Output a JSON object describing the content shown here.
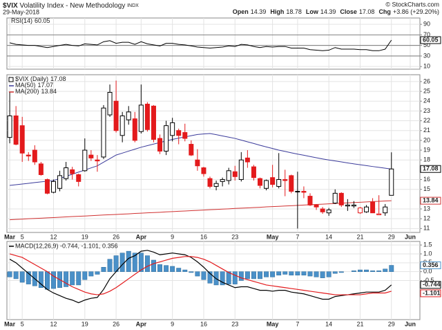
{
  "header": {
    "symbol": "$VIX",
    "name": "Volatility Index - New Methodology",
    "exchange": "INDX",
    "date": "29-May-2018",
    "copyright": "© StockCharts.com",
    "quote": [
      {
        "label": "Open",
        "value": "14.39"
      },
      {
        "label": "High",
        "value": "18.78"
      },
      {
        "label": "Low",
        "value": "14.39"
      },
      {
        "label": "Close",
        "value": "17.08"
      },
      {
        "label": "Chg",
        "value": "+3.86 (+29.20%)"
      }
    ]
  },
  "chart_data": [
    {
      "type": "line",
      "name": "RSI(14)",
      "color": "#000000",
      "values": [
        55,
        52,
        51,
        50,
        50,
        48,
        46,
        48,
        50,
        52,
        50,
        49,
        53,
        52,
        51,
        57,
        59,
        54,
        56,
        56,
        52,
        57,
        53,
        51,
        49,
        54,
        54,
        52,
        51,
        49,
        47,
        46,
        45,
        46,
        47,
        49,
        48,
        52,
        51,
        48,
        46,
        48,
        47,
        48,
        48,
        45,
        45,
        45,
        42,
        41,
        40,
        41,
        46,
        43,
        43,
        43,
        42,
        42,
        40,
        40,
        43,
        60.05,
        null,
        null,
        null
      ],
      "ylim": [
        5,
        102
      ],
      "yticks": [
        10,
        30,
        50,
        70,
        90
      ],
      "levels": [
        30,
        50,
        70
      ],
      "grid": true
    },
    {
      "type": "candlestick",
      "name": "$VIX (Daily)",
      "up_color": "#000000",
      "down_color": "#e31a1c",
      "categories": [
        "Mar",
        null,
        "5",
        null,
        null,
        null,
        null,
        "12",
        null,
        null,
        null,
        null,
        "19",
        null,
        null,
        null,
        null,
        "26",
        null,
        null,
        null,
        "Apr",
        null,
        null,
        null,
        null,
        "9",
        null,
        null,
        null,
        null,
        "16",
        null,
        null,
        null,
        null,
        "23",
        null,
        null,
        null,
        null,
        null,
        "May",
        null,
        null,
        null,
        "7",
        null,
        null,
        null,
        null,
        "14",
        null,
        null,
        null,
        null,
        "21",
        null,
        null,
        null,
        null,
        "29",
        null,
        null,
        "Jun"
      ],
      "ohlc": [
        [
          20.3,
          24.9,
          19.7,
          22.5
        ],
        [
          22.5,
          23.5,
          19.5,
          19.6
        ],
        [
          21.5,
          22.4,
          17.8,
          18.7
        ],
        [
          18.5,
          18.8,
          17.9,
          18.4
        ],
        [
          19.0,
          19.5,
          17.5,
          17.8
        ],
        [
          17.6,
          17.8,
          16.4,
          16.5
        ],
        [
          16.0,
          16.1,
          14.5,
          14.6
        ],
        [
          14.7,
          16.0,
          14.6,
          15.8
        ],
        [
          15.1,
          16.9,
          14.8,
          16.4
        ],
        [
          16.1,
          17.8,
          15.9,
          17.2
        ],
        [
          17.0,
          17.3,
          16.0,
          16.6
        ],
        [
          16.5,
          16.6,
          15.3,
          15.8
        ],
        [
          16.9,
          20.2,
          16.8,
          19.0
        ],
        [
          18.5,
          19.0,
          17.9,
          18.2
        ],
        [
          18.0,
          18.5,
          16.8,
          17.9
        ],
        [
          18.3,
          23.6,
          18.1,
          23.3
        ],
        [
          22.6,
          25.7,
          22.4,
          24.9
        ],
        [
          24.0,
          26.1,
          20.8,
          21.0
        ],
        [
          20.5,
          22.9,
          19.8,
          22.5
        ],
        [
          22.1,
          23.5,
          21.6,
          22.9
        ],
        [
          22.2,
          22.9,
          19.8,
          20.0
        ],
        [
          20.9,
          25.7,
          20.7,
          23.6
        ],
        [
          23.7,
          23.9,
          20.9,
          21.1
        ],
        [
          23.5,
          23.6,
          19.8,
          20.1
        ],
        [
          20.2,
          20.6,
          18.6,
          18.9
        ],
        [
          18.9,
          22.0,
          18.5,
          21.5
        ],
        [
          20.5,
          22.3,
          19.9,
          21.8
        ],
        [
          21.0,
          21.2,
          19.6,
          20.5
        ],
        [
          20.8,
          21.7,
          19.9,
          20.2
        ],
        [
          19.6,
          20.0,
          18.4,
          18.5
        ],
        [
          18.0,
          19.1,
          16.9,
          17.4
        ],
        [
          17.2,
          17.3,
          16.3,
          16.6
        ],
        [
          16.1,
          16.3,
          15.1,
          15.3
        ],
        [
          15.3,
          15.9,
          14.9,
          15.6
        ],
        [
          15.8,
          16.2,
          15.3,
          16.0
        ],
        [
          15.9,
          17.2,
          15.5,
          16.9
        ],
        [
          16.8,
          17.4,
          15.9,
          16.3
        ],
        [
          16.0,
          18.8,
          15.8,
          18.0
        ],
        [
          18.2,
          19.0,
          17.2,
          17.8
        ],
        [
          17.3,
          17.5,
          15.9,
          16.2
        ],
        [
          16.1,
          16.2,
          15.1,
          15.4
        ],
        [
          15.1,
          16.0,
          14.9,
          15.9
        ],
        [
          16.2,
          17.5,
          15.2,
          15.5
        ],
        [
          15.3,
          18.7,
          15.1,
          16.0
        ],
        [
          16.0,
          17.0,
          14.3,
          15.9
        ],
        [
          16.4,
          16.5,
          14.6,
          14.8
        ],
        [
          14.8,
          16.8,
          11.0,
          14.8
        ],
        [
          14.8,
          15.3,
          14.1,
          14.7
        ],
        [
          14.3,
          14.6,
          13.3,
          13.4
        ],
        [
          13.4,
          13.5,
          12.9,
          13.2
        ],
        [
          13.0,
          13.2,
          12.5,
          12.7
        ],
        [
          12.6,
          13.1,
          12.3,
          12.9
        ],
        [
          13.6,
          15.0,
          13.5,
          14.6
        ],
        [
          14.6,
          14.7,
          13.2,
          13.4
        ],
        [
          13.3,
          14.0,
          12.8,
          13.4
        ],
        [
          13.3,
          13.8,
          13.1,
          13.4
        ],
        [
          12.6,
          13.2,
          12.5,
          13.1
        ],
        [
          12.7,
          13.4,
          12.6,
          13.2
        ],
        [
          13.7,
          14.1,
          12.6,
          12.6
        ],
        [
          12.4,
          14.4,
          12.4,
          12.5
        ],
        [
          12.6,
          13.5,
          12.3,
          13.2
        ],
        [
          14.39,
          18.78,
          14.39,
          17.08
        ],
        null,
        null,
        null
      ],
      "series": [
        {
          "name": "MA(50)",
          "color": "#3a3a9a",
          "values": [
            15.4,
            15.47,
            15.54,
            15.61,
            15.69,
            15.76,
            15.83,
            15.9,
            16.11,
            16.33,
            16.54,
            16.76,
            16.97,
            17.19,
            17.4,
            17.77,
            18.13,
            18.5,
            18.7,
            18.9,
            19.1,
            19.3,
            19.46,
            19.62,
            19.78,
            19.94,
            20.1,
            20.23,
            20.35,
            20.48,
            20.6,
            20.65,
            20.7,
            20.58,
            20.45,
            20.33,
            20.2,
            20.03,
            19.85,
            19.68,
            19.5,
            19.33,
            19.17,
            19.0,
            18.87,
            18.73,
            18.6,
            18.48,
            18.35,
            18.23,
            18.1,
            18.0,
            17.9,
            17.8,
            17.7,
            17.6,
            17.51,
            17.42,
            17.33,
            17.25,
            17.16,
            17.07,
            null,
            null,
            null
          ]
        },
        {
          "name": "MA(200)",
          "color": "#d03030",
          "values": [
            11.9,
            11.93,
            11.96,
            12.0,
            12.03,
            12.06,
            12.09,
            12.12,
            12.15,
            12.19,
            12.22,
            12.25,
            12.28,
            12.31,
            12.35,
            12.38,
            12.41,
            12.44,
            12.47,
            12.5,
            12.54,
            12.57,
            12.6,
            12.63,
            12.66,
            12.7,
            12.73,
            12.76,
            12.79,
            12.82,
            12.85,
            12.89,
            12.92,
            12.95,
            12.98,
            13.01,
            13.05,
            13.08,
            13.11,
            13.14,
            13.17,
            13.21,
            13.24,
            13.27,
            13.3,
            13.33,
            13.36,
            13.4,
            13.43,
            13.46,
            13.49,
            13.52,
            13.56,
            13.59,
            13.62,
            13.65,
            13.68,
            13.72,
            13.75,
            13.78,
            13.81,
            13.84,
            null,
            null,
            null
          ]
        }
      ],
      "ylim": [
        10.6,
        26.7
      ],
      "yticks": [
        11,
        12,
        13,
        15,
        16,
        18,
        19,
        20,
        21,
        22,
        23,
        24,
        25,
        26
      ],
      "grid": true
    },
    {
      "type": "macd",
      "legend": "MACD(12,26,9) -0.744, -1.101, 0.356",
      "categories": [
        "Mar",
        null,
        "5",
        null,
        null,
        null,
        null,
        "12",
        null,
        null,
        null,
        null,
        "19",
        null,
        null,
        null,
        null,
        "26",
        null,
        null,
        null,
        "Apr",
        null,
        null,
        null,
        null,
        "9",
        null,
        null,
        null,
        null,
        "16",
        null,
        null,
        null,
        null,
        "23",
        null,
        null,
        null,
        null,
        null,
        "May",
        null,
        null,
        null,
        "7",
        null,
        null,
        null,
        null,
        "14",
        null,
        null,
        null,
        null,
        "21",
        null,
        null,
        null,
        null,
        "29",
        null,
        null,
        "Jun"
      ],
      "series": [
        {
          "color": "#000000",
          "values": [
            0.7,
            0.5,
            0.2,
            -0.1,
            -0.4,
            -0.7,
            -1.0,
            -1.2,
            -1.35,
            -1.5,
            -1.6,
            -1.75,
            -1.6,
            -1.5,
            -1.45,
            -1.0,
            -0.4,
            0.0,
            0.4,
            0.75,
            0.9,
            1.15,
            1.2,
            1.1,
            0.95,
            1.0,
            1.05,
            1.0,
            0.95,
            0.8,
            0.55,
            0.25,
            -0.1,
            -0.4,
            -0.6,
            -0.75,
            -0.9,
            -0.85,
            -0.85,
            -0.95,
            -1.05,
            -1.05,
            -1.1,
            -1.05,
            -1.05,
            -1.15,
            -1.2,
            -1.25,
            -1.35,
            -1.45,
            -1.55,
            -1.55,
            -1.4,
            -1.35,
            -1.3,
            -1.25,
            -1.2,
            -1.15,
            -1.15,
            -1.15,
            -1.05,
            -0.744,
            null,
            null,
            null
          ]
        },
        {
          "color": "#e31a1c",
          "values": [
            1.0,
            0.9,
            0.8,
            0.6,
            0.4,
            0.2,
            0.0,
            -0.25,
            -0.45,
            -0.65,
            -0.85,
            -1.0,
            -1.15,
            -1.25,
            -1.3,
            -1.25,
            -1.1,
            -0.9,
            -0.65,
            -0.4,
            -0.15,
            0.1,
            0.3,
            0.45,
            0.55,
            0.65,
            0.75,
            0.8,
            0.85,
            0.85,
            0.8,
            0.7,
            0.55,
            0.35,
            0.15,
            -0.05,
            -0.2,
            -0.35,
            -0.45,
            -0.55,
            -0.65,
            -0.75,
            -0.8,
            -0.85,
            -0.9,
            -0.95,
            -1.0,
            -1.05,
            -1.1,
            -1.15,
            -1.2,
            -1.25,
            -1.3,
            -1.3,
            -1.3,
            -1.3,
            -1.3,
            -1.25,
            -1.2,
            -1.2,
            -1.2,
            -1.101,
            null,
            null,
            null
          ]
        }
      ],
      "histogram": {
        "color": "#4a90c8",
        "values": [
          -0.3,
          -0.4,
          -0.6,
          -0.7,
          -0.8,
          -0.9,
          -1.0,
          -0.95,
          -0.9,
          -0.85,
          -0.75,
          -0.75,
          -0.45,
          -0.25,
          -0.15,
          0.25,
          0.7,
          0.9,
          1.05,
          1.15,
          1.05,
          1.05,
          0.9,
          0.65,
          0.4,
          0.35,
          0.3,
          0.2,
          0.1,
          -0.05,
          -0.25,
          -0.45,
          -0.65,
          -0.75,
          -0.75,
          -0.7,
          -0.7,
          -0.5,
          -0.4,
          -0.4,
          -0.4,
          -0.3,
          -0.3,
          -0.2,
          -0.15,
          -0.2,
          -0.2,
          -0.2,
          -0.25,
          -0.3,
          -0.35,
          -0.3,
          -0.1,
          -0.05,
          0,
          0.05,
          0.1,
          0.1,
          0.05,
          0.05,
          0.15,
          0.356,
          null,
          null,
          null
        ]
      },
      "ylim": [
        -2.7,
        1.7
      ],
      "yticks": [
        1.5,
        {
          "value": 1,
          "label": "1.0"
        },
        0.5,
        {
          "value": 0,
          "label": "0.0"
        },
        -0.5
      ],
      "grid": true
    }
  ]
}
